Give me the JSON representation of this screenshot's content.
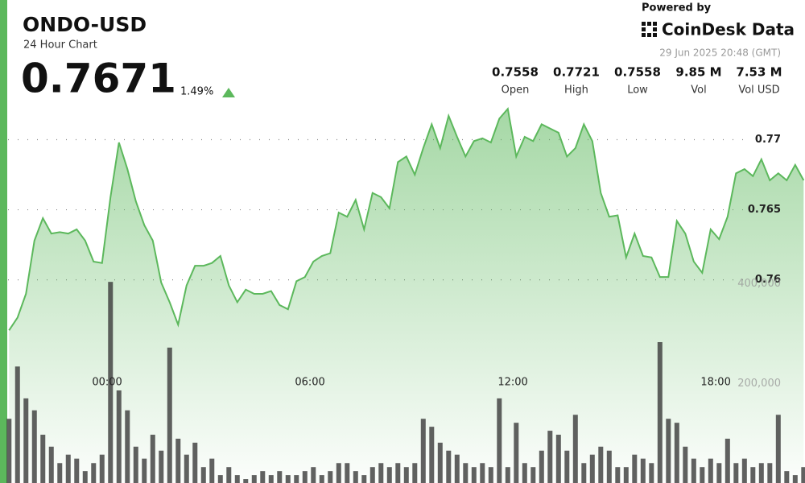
{
  "header": {
    "title": "ONDO-USD",
    "subtitle": "24 Hour Chart",
    "price": "0.7671",
    "change": "1.49%"
  },
  "branding": {
    "powered_by": "Powered by",
    "brand": "CoinDesk Data"
  },
  "timestamp": "29 Jun 2025 20:48 (GMT)",
  "stats": [
    {
      "value": "0.7558",
      "label": "Open"
    },
    {
      "value": "0.7721",
      "label": "High"
    },
    {
      "value": "0.7558",
      "label": "Low"
    },
    {
      "value": "9.85 M",
      "label": "Vol"
    },
    {
      "value": "7.53 M",
      "label": "Vol USD"
    }
  ],
  "chart_data": {
    "type": "line",
    "x": [
      -2.9,
      -2.65,
      -2.4,
      -2.15,
      -1.9,
      -1.65,
      -1.4,
      -1.15,
      -0.9,
      -0.65,
      -0.4,
      -0.15,
      0.1,
      0.35,
      0.6,
      0.85,
      1.1,
      1.35,
      1.6,
      1.85,
      2.1,
      2.35,
      2.6,
      2.85,
      3.1,
      3.35,
      3.6,
      3.85,
      4.1,
      4.35,
      4.6,
      4.85,
      5.1,
      5.35,
      5.6,
      5.85,
      6.1,
      6.35,
      6.6,
      6.85,
      7.1,
      7.35,
      7.6,
      7.85,
      8.1,
      8.35,
      8.6,
      8.85,
      9.1,
      9.35,
      9.6,
      9.85,
      10.1,
      10.35,
      10.6,
      10.85,
      11.1,
      11.35,
      11.6,
      11.85,
      12.1,
      12.35,
      12.6,
      12.85,
      13.1,
      13.35,
      13.6,
      13.85,
      14.1,
      14.35,
      14.6,
      14.85,
      15.1,
      15.35,
      15.6,
      15.85,
      16.1,
      16.35,
      16.6,
      16.85,
      17.1,
      17.35,
      17.6,
      17.85,
      18.1,
      18.35,
      18.6,
      18.85,
      19.1,
      19.35,
      19.6,
      19.85,
      20.1,
      20.35,
      20.6
    ],
    "series": [
      {
        "name": "Price",
        "color": "#5cb85c",
        "values": [
          0.7564,
          0.7573,
          0.759,
          0.7628,
          0.7644,
          0.7633,
          0.7634,
          0.7633,
          0.7636,
          0.7628,
          0.7613,
          0.7612,
          0.7659,
          0.7698,
          0.7679,
          0.7656,
          0.7639,
          0.7628,
          0.7598,
          0.7584,
          0.7568,
          0.7596,
          0.761,
          0.761,
          0.7612,
          0.7617,
          0.7596,
          0.7584,
          0.7593,
          0.759,
          0.759,
          0.7592,
          0.7582,
          0.7579,
          0.7599,
          0.7602,
          0.7613,
          0.7617,
          0.7619,
          0.7648,
          0.7645,
          0.7657,
          0.7636,
          0.7662,
          0.7659,
          0.7651,
          0.7684,
          0.7688,
          0.7675,
          0.7694,
          0.7711,
          0.7694,
          0.7717,
          0.7702,
          0.7688,
          0.7699,
          0.7701,
          0.7698,
          0.7715,
          0.7722,
          0.7688,
          0.7702,
          0.7699,
          0.7711,
          0.7708,
          0.7705,
          0.7688,
          0.7694,
          0.7711,
          0.7699,
          0.7662,
          0.7645,
          0.7646,
          0.7616,
          0.7633,
          0.7617,
          0.7616,
          0.7602,
          0.7602,
          0.7642,
          0.7633,
          0.7613,
          0.7605,
          0.7636,
          0.7629,
          0.7645,
          0.7676,
          0.7679,
          0.7674,
          0.7686,
          0.7671,
          0.7676,
          0.7671,
          0.7682,
          0.7671
        ]
      },
      {
        "name": "Volume",
        "type": "bar",
        "axis": "y2",
        "color": "#3a3a3a",
        "values": [
          129000,
          234000,
          170000,
          146000,
          97000,
          73000,
          40000,
          57000,
          49000,
          24000,
          40000,
          57000,
          404000,
          186000,
          146000,
          73000,
          49000,
          97000,
          65000,
          272000,
          89000,
          57000,
          81000,
          32000,
          49000,
          16000,
          32000,
          16000,
          8000,
          16000,
          24000,
          16000,
          24000,
          16000,
          16000,
          24000,
          32000,
          16000,
          24000,
          40000,
          40000,
          24000,
          16000,
          32000,
          40000,
          32000,
          40000,
          32000,
          40000,
          129000,
          113000,
          81000,
          65000,
          57000,
          40000,
          32000,
          40000,
          32000,
          170000,
          32000,
          121000,
          40000,
          32000,
          65000,
          105000,
          97000,
          65000,
          137000,
          40000,
          57000,
          73000,
          65000,
          32000,
          32000,
          57000,
          49000,
          40000,
          283000,
          129000,
          121000,
          73000,
          49000,
          32000,
          49000,
          40000,
          89000,
          40000,
          49000,
          32000,
          40000,
          40000,
          137000,
          24000,
          16000,
          32000
        ]
      }
    ],
    "xlim": [
      -2.93,
      20.64
    ],
    "xticks": [
      {
        "value": 0,
        "label": "00:00"
      },
      {
        "value": 6,
        "label": "06:00"
      },
      {
        "value": 12,
        "label": "12:00"
      },
      {
        "value": 18,
        "label": "18:00"
      }
    ],
    "ylim": [
      0.7455,
      0.7725
    ],
    "yticks": [
      0.76,
      0.765,
      0.77
    ],
    "y2lim": [
      0,
      760000
    ],
    "y2ticks": [
      {
        "value": 200000,
        "label": "200,000"
      },
      {
        "value": 400000,
        "label": "400,000"
      }
    ],
    "grid": true
  }
}
